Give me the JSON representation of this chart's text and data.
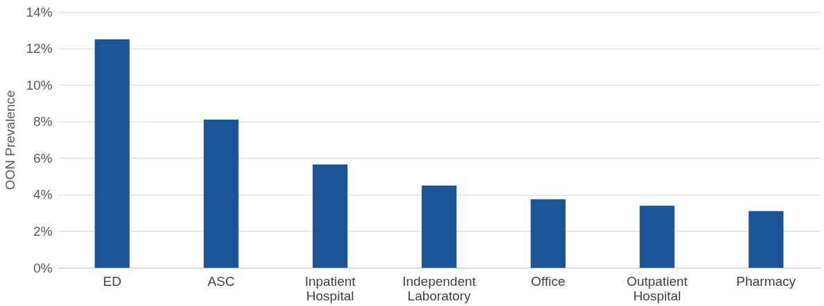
{
  "chart_data": {
    "type": "bar",
    "ylabel": "OON Prevalence",
    "categories": [
      "ED",
      "ASC",
      "Inpatient Hospital",
      "Independent Laboratory",
      "Office",
      "Outpatient Hospital",
      "Pharmacy"
    ],
    "values": [
      12.5,
      8.1,
      5.65,
      4.5,
      3.75,
      3.4,
      3.1
    ],
    "color": "#1a5494",
    "ylim": [
      0,
      14
    ],
    "yticks": [
      {
        "value": 0,
        "label": "0%"
      },
      {
        "value": 2,
        "label": "2%"
      },
      {
        "value": 4,
        "label": "4%"
      },
      {
        "value": 6,
        "label": "6%"
      },
      {
        "value": 8,
        "label": "8%"
      },
      {
        "value": 10,
        "label": "10%"
      },
      {
        "value": 12,
        "label": "12%"
      },
      {
        "value": 14,
        "label": "14%"
      }
    ],
    "grid": "y"
  }
}
